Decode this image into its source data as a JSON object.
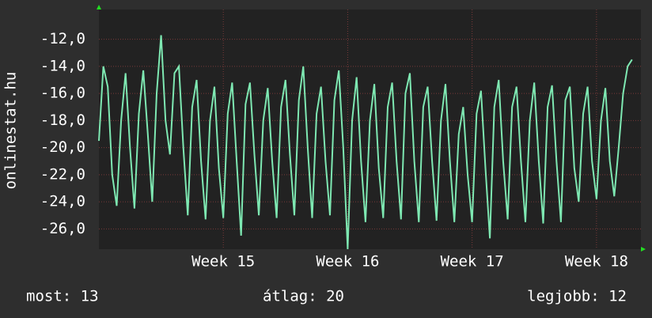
{
  "chart_data": {
    "type": "line",
    "y_label": "onlinestat.hu",
    "x": [
      0,
      0.25,
      0.5,
      0.75,
      1,
      1.25,
      1.5,
      1.75,
      2,
      2.25,
      2.5,
      2.75,
      3,
      3.25,
      3.5,
      3.75,
      4,
      4.25,
      4.5,
      4.75,
      5,
      5.25,
      5.5,
      5.75,
      6,
      6.25,
      6.5,
      6.75,
      7,
      7.25,
      7.5,
      7.75,
      8,
      8.25,
      8.5,
      8.75,
      9,
      9.25,
      9.5,
      9.75,
      10,
      10.25,
      10.5,
      10.75,
      11,
      11.25,
      11.5,
      11.75,
      12,
      12.25,
      12.5,
      12.75,
      13,
      13.25,
      13.5,
      13.75,
      14,
      14.25,
      14.5,
      14.75,
      15,
      15.25,
      15.5,
      15.75,
      16,
      16.25,
      16.5,
      16.75,
      17,
      17.25,
      17.5,
      17.75,
      18,
      18.25,
      18.5,
      18.75,
      19,
      19.25,
      19.5,
      19.75,
      20,
      20.25,
      20.5,
      20.75,
      21,
      21.25,
      21.5,
      21.75,
      22,
      22.25,
      22.5,
      22.75,
      23,
      23.25,
      23.5,
      23.75,
      24,
      24.25,
      24.5,
      24.75,
      25,
      25.25,
      25.5,
      25.75,
      26,
      26.25,
      26.5,
      26.75,
      27,
      27.25,
      27.5,
      27.75,
      28,
      28.25,
      28.5,
      28.75,
      29,
      29.25,
      29.5,
      29.75,
      30
    ],
    "series": [
      {
        "color": "#7ee8b2",
        "values": [
          -19.5,
          -14.0,
          -15.5,
          -22.0,
          -24.3,
          -18.0,
          -14.5,
          -20.0,
          -24.5,
          -17.5,
          -14.3,
          -19.0,
          -24.0,
          -16.0,
          -11.7,
          -18.0,
          -20.5,
          -14.5,
          -14.0,
          -20.0,
          -25.0,
          -17.0,
          -15.0,
          -21.0,
          -25.3,
          -18.0,
          -15.5,
          -21.5,
          -25.2,
          -17.5,
          -15.2,
          -21.0,
          -26.5,
          -16.8,
          -15.2,
          -20.5,
          -25.0,
          -18.0,
          -15.6,
          -21.0,
          -25.2,
          -17.0,
          -15.0,
          -20.5,
          -25.0,
          -16.5,
          -14.0,
          -20.0,
          -25.2,
          -17.5,
          -15.5,
          -21.0,
          -25.0,
          -16.5,
          -14.3,
          -20.0,
          -27.5,
          -18.0,
          -14.8,
          -21.0,
          -25.5,
          -18.0,
          -15.3,
          -21.5,
          -25.2,
          -17.0,
          -15.2,
          -21.0,
          -25.3,
          -16.0,
          -14.5,
          -21.0,
          -25.5,
          -17.0,
          -15.5,
          -21.0,
          -25.4,
          -18.0,
          -15.3,
          -21.0,
          -25.5,
          -19.0,
          -17.0,
          -22.0,
          -25.5,
          -17.5,
          -15.8,
          -21.5,
          -26.7,
          -17.0,
          -15.0,
          -21.0,
          -25.3,
          -17.0,
          -15.5,
          -21.0,
          -25.5,
          -18.0,
          -15.2,
          -21.0,
          -25.6,
          -17.0,
          -15.4,
          -21.0,
          -25.5,
          -16.5,
          -15.5,
          -21.5,
          -24.0,
          -17.5,
          -15.5,
          -21.0,
          -23.8,
          -18.0,
          -15.6,
          -21.0,
          -23.6,
          -20.0,
          -16.0,
          -14.0,
          -13.5
        ]
      }
    ],
    "xlim": [
      0,
      30.5
    ],
    "xticks": [
      {
        "value": 7,
        "label": "Week 15"
      },
      {
        "value": 14,
        "label": "Week 16"
      },
      {
        "value": 21,
        "label": "Week 17"
      },
      {
        "value": 28,
        "label": "Week 18"
      }
    ],
    "ylim": [
      -27.5,
      -9.8
    ],
    "yticks": [
      {
        "value": -12,
        "label": "-12,0"
      },
      {
        "value": -14,
        "label": "-14,0"
      },
      {
        "value": -16,
        "label": "-16,0"
      },
      {
        "value": -18,
        "label": "-18,0"
      },
      {
        "value": -20,
        "label": "-20,0"
      },
      {
        "value": -22,
        "label": "-22,0"
      },
      {
        "value": -24,
        "label": "-24,0"
      },
      {
        "value": -26,
        "label": "-26,0"
      }
    ],
    "grid": true,
    "footer": [
      "most: 13",
      "átlag: 20",
      "legjobb: 12"
    ]
  }
}
